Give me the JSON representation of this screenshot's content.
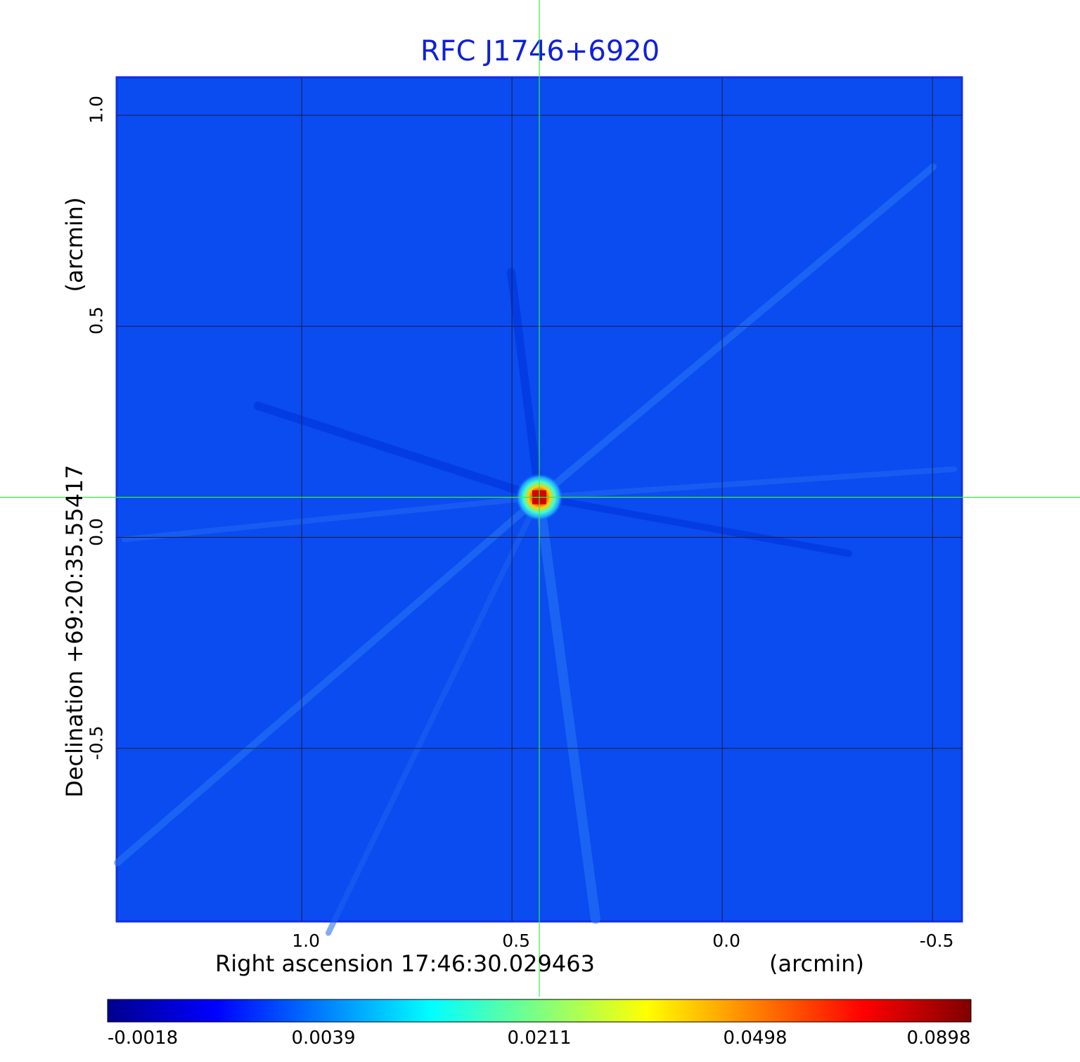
{
  "chart_data": {
    "type": "heatmap",
    "title": "RFC J1746+6920",
    "xlabel": "Right ascension  17:46:30.029463",
    "xunit": "(arcmin)",
    "ylabel": "Declination  +69:20:35.55417",
    "yunit": "(arcmin)",
    "xlim": [
      1.44,
      -0.57
    ],
    "ylim": [
      -0.91,
      1.09
    ],
    "x_ticks": [
      {
        "value": 1.0,
        "label": "1.0"
      },
      {
        "value": 0.5,
        "label": "0.5"
      },
      {
        "value": 0.0,
        "label": "0.0"
      },
      {
        "value": -0.5,
        "label": "-0.5"
      }
    ],
    "y_ticks": [
      {
        "value": 1.0,
        "label": "1.0"
      },
      {
        "value": 0.5,
        "label": "0.5"
      },
      {
        "value": 0.0,
        "label": "0.0"
      },
      {
        "value": -0.5,
        "label": "-0.5"
      }
    ],
    "grid": true,
    "crosshair": {
      "x": 0.435,
      "y": 0.095
    },
    "source_peak": {
      "x": 0.435,
      "y": 0.095,
      "value": 0.0898
    },
    "colorbar": {
      "ticks": [
        "-0.0018",
        "0.0039",
        "0.0211",
        "0.0498",
        "0.0898"
      ],
      "min": -0.0018,
      "max": 0.0898,
      "colormap": "jet"
    },
    "colors": {
      "background_field": "#0a4cf0",
      "title": "#1020d8",
      "grid": "#1a1a40",
      "crosshair": "#3ee84a"
    }
  }
}
